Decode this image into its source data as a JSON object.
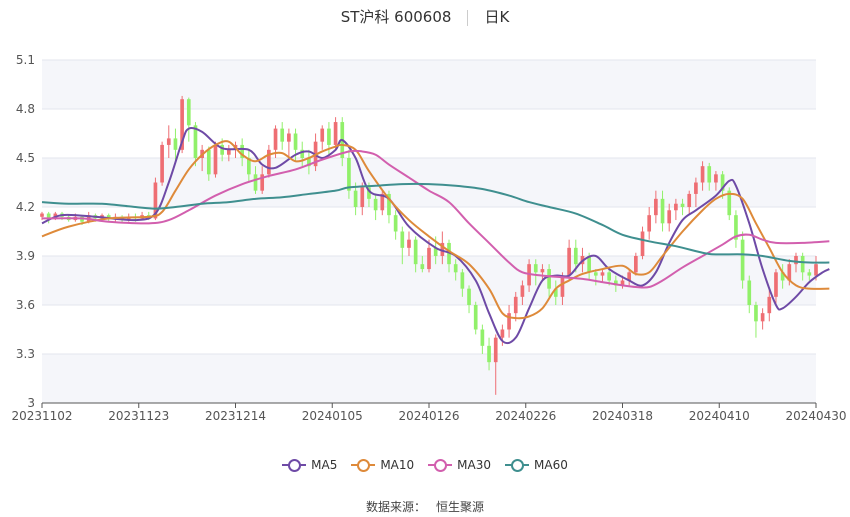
{
  "header": {
    "title": "ST沪科 600608",
    "period": "日K"
  },
  "source": {
    "label": "数据来源：",
    "name": "恒生聚源"
  },
  "colors": {
    "up": "#ee6e73",
    "down": "#91f06a",
    "grid_band": "#f5f6fa"
  },
  "chart_data": {
    "type": "candlestick",
    "ylim": [
      3,
      5.1
    ],
    "yticks": [
      "3",
      "3.3",
      "3.6",
      "3.9",
      "4.2",
      "4.5",
      "4.8",
      "5.1"
    ],
    "xticks": [
      "20231102",
      "20231123",
      "20231214",
      "20240105",
      "20240126",
      "20240226",
      "20240318",
      "20240410",
      "20240430"
    ],
    "candles": [
      [
        4.14,
        4.16,
        4.12,
        4.17
      ],
      [
        4.16,
        4.13,
        4.1,
        4.17
      ],
      [
        4.13,
        4.16,
        4.12,
        4.17
      ],
      [
        4.16,
        4.14,
        4.12,
        4.17
      ],
      [
        4.14,
        4.12,
        4.11,
        4.15
      ],
      [
        4.12,
        4.14,
        4.11,
        4.16
      ],
      [
        4.14,
        4.11,
        4.09,
        4.15
      ],
      [
        4.11,
        4.15,
        4.1,
        4.17
      ],
      [
        4.15,
        4.13,
        4.11,
        4.16
      ],
      [
        4.13,
        4.15,
        4.12,
        4.16
      ],
      [
        4.15,
        4.13,
        4.11,
        4.16
      ],
      [
        4.13,
        4.14,
        4.11,
        4.16
      ],
      [
        4.14,
        4.12,
        4.1,
        4.15
      ],
      [
        4.12,
        4.14,
        4.11,
        4.16
      ],
      [
        4.14,
        4.13,
        4.11,
        4.16
      ],
      [
        4.13,
        4.15,
        4.12,
        4.17
      ],
      [
        4.15,
        4.13,
        4.12,
        4.17
      ],
      [
        4.13,
        4.35,
        4.12,
        4.38
      ],
      [
        4.35,
        4.58,
        4.33,
        4.6
      ],
      [
        4.58,
        4.62,
        4.5,
        4.7
      ],
      [
        4.62,
        4.55,
        4.48,
        4.68
      ],
      [
        4.55,
        4.86,
        4.53,
        4.88
      ],
      [
        4.86,
        4.7,
        4.6,
        4.87
      ],
      [
        4.7,
        4.5,
        4.45,
        4.72
      ],
      [
        4.5,
        4.55,
        4.42,
        4.58
      ],
      [
        4.55,
        4.4,
        4.36,
        4.57
      ],
      [
        4.4,
        4.58,
        4.38,
        4.6
      ],
      [
        4.58,
        4.52,
        4.48,
        4.62
      ],
      [
        4.52,
        4.55,
        4.48,
        4.58
      ],
      [
        4.55,
        4.58,
        4.5,
        4.6
      ],
      [
        4.58,
        4.5,
        4.45,
        4.62
      ],
      [
        4.5,
        4.4,
        4.35,
        4.55
      ],
      [
        4.4,
        4.3,
        4.28,
        4.45
      ],
      [
        4.3,
        4.4,
        4.28,
        4.45
      ],
      [
        4.4,
        4.55,
        4.38,
        4.58
      ],
      [
        4.55,
        4.68,
        4.5,
        4.7
      ],
      [
        4.68,
        4.6,
        4.55,
        4.72
      ],
      [
        4.6,
        4.65,
        4.5,
        4.68
      ],
      [
        4.65,
        4.55,
        4.48,
        4.68
      ],
      [
        4.55,
        4.5,
        4.45,
        4.6
      ],
      [
        4.5,
        4.45,
        4.4,
        4.55
      ],
      [
        4.45,
        4.6,
        4.42,
        4.65
      ],
      [
        4.6,
        4.68,
        4.55,
        4.7
      ],
      [
        4.68,
        4.58,
        4.52,
        4.72
      ],
      [
        4.58,
        4.72,
        4.55,
        4.75
      ],
      [
        4.72,
        4.5,
        4.45,
        4.75
      ],
      [
        4.5,
        4.3,
        4.25,
        4.55
      ],
      [
        4.3,
        4.2,
        4.15,
        4.35
      ],
      [
        4.2,
        4.32,
        4.15,
        4.35
      ],
      [
        4.32,
        4.25,
        4.2,
        4.35
      ],
      [
        4.25,
        4.18,
        4.12,
        4.28
      ],
      [
        4.18,
        4.28,
        4.15,
        4.3
      ],
      [
        4.28,
        4.15,
        4.1,
        4.3
      ],
      [
        4.15,
        4.05,
        4.0,
        4.18
      ],
      [
        4.05,
        3.95,
        3.85,
        4.08
      ],
      [
        3.95,
        4.0,
        3.9,
        4.05
      ],
      [
        4.0,
        3.85,
        3.8,
        4.02
      ],
      [
        3.85,
        3.82,
        3.8,
        3.9
      ],
      [
        3.82,
        3.95,
        3.8,
        4.0
      ],
      [
        3.95,
        3.9,
        3.85,
        4.02
      ],
      [
        3.9,
        3.98,
        3.85,
        4.05
      ],
      [
        3.98,
        3.85,
        3.8,
        4.0
      ],
      [
        3.85,
        3.8,
        3.75,
        3.88
      ],
      [
        3.8,
        3.7,
        3.65,
        3.82
      ],
      [
        3.7,
        3.6,
        3.55,
        3.72
      ],
      [
        3.6,
        3.45,
        3.42,
        3.62
      ],
      [
        3.45,
        3.35,
        3.3,
        3.48
      ],
      [
        3.35,
        3.25,
        3.2,
        3.4
      ],
      [
        3.25,
        3.4,
        3.05,
        3.42
      ],
      [
        3.4,
        3.45,
        3.35,
        3.48
      ],
      [
        3.45,
        3.55,
        3.4,
        3.6
      ],
      [
        3.55,
        3.65,
        3.5,
        3.68
      ],
      [
        3.65,
        3.72,
        3.6,
        3.75
      ],
      [
        3.72,
        3.85,
        3.68,
        3.88
      ],
      [
        3.85,
        3.8,
        3.72,
        3.88
      ],
      [
        3.8,
        3.82,
        3.75,
        3.85
      ],
      [
        3.82,
        3.7,
        3.65,
        3.85
      ],
      [
        3.7,
        3.65,
        3.6,
        3.75
      ],
      [
        3.65,
        3.78,
        3.6,
        3.8
      ],
      [
        3.78,
        3.95,
        3.75,
        4.0
      ],
      [
        3.95,
        3.85,
        3.8,
        4.0
      ],
      [
        3.85,
        3.9,
        3.8,
        3.95
      ],
      [
        3.9,
        3.8,
        3.75,
        3.92
      ],
      [
        3.8,
        3.78,
        3.72,
        3.82
      ],
      [
        3.78,
        3.8,
        3.74,
        3.82
      ],
      [
        3.8,
        3.75,
        3.72,
        3.82
      ],
      [
        3.75,
        3.72,
        3.68,
        3.78
      ],
      [
        3.72,
        3.75,
        3.7,
        3.78
      ],
      [
        3.75,
        3.8,
        3.72,
        3.82
      ],
      [
        3.8,
        3.9,
        3.78,
        3.92
      ],
      [
        3.9,
        4.05,
        3.88,
        4.08
      ],
      [
        4.05,
        4.15,
        4.0,
        4.2
      ],
      [
        4.15,
        4.25,
        4.1,
        4.3
      ],
      [
        4.25,
        4.1,
        4.05,
        4.3
      ],
      [
        4.1,
        4.18,
        4.05,
        4.22
      ],
      [
        4.18,
        4.22,
        4.12,
        4.25
      ],
      [
        4.22,
        4.2,
        4.15,
        4.25
      ],
      [
        4.2,
        4.28,
        4.15,
        4.3
      ],
      [
        4.28,
        4.35,
        4.2,
        4.38
      ],
      [
        4.35,
        4.45,
        4.3,
        4.48
      ],
      [
        4.45,
        4.35,
        4.3,
        4.47
      ],
      [
        4.35,
        4.4,
        4.3,
        4.42
      ],
      [
        4.4,
        4.3,
        4.25,
        4.42
      ],
      [
        4.3,
        4.15,
        4.12,
        4.32
      ],
      [
        4.15,
        4.0,
        3.95,
        4.18
      ],
      [
        4.0,
        3.75,
        3.7,
        4.05
      ],
      [
        3.75,
        3.6,
        3.55,
        3.78
      ],
      [
        3.6,
        3.5,
        3.4,
        3.62
      ],
      [
        3.5,
        3.55,
        3.45,
        3.58
      ],
      [
        3.55,
        3.65,
        3.5,
        3.7
      ],
      [
        3.65,
        3.8,
        3.6,
        3.82
      ],
      [
        3.8,
        3.75,
        3.7,
        3.85
      ],
      [
        3.75,
        3.85,
        3.72,
        3.88
      ],
      [
        3.85,
        3.9,
        3.8,
        3.92
      ],
      [
        3.9,
        3.8,
        3.75,
        3.92
      ],
      [
        3.8,
        3.78,
        3.75,
        3.82
      ],
      [
        3.78,
        3.85,
        3.75,
        3.9
      ]
    ],
    "series": [
      {
        "name": "MA5",
        "color": "#6e4aa6",
        "points": [
          [
            0,
            4.1
          ],
          [
            3,
            4.15
          ],
          [
            8,
            4.14
          ],
          [
            14,
            4.12
          ],
          [
            17,
            4.16
          ],
          [
            19,
            4.35
          ],
          [
            21,
            4.6
          ],
          [
            22,
            4.68
          ],
          [
            24,
            4.66
          ],
          [
            27,
            4.56
          ],
          [
            31,
            4.55
          ],
          [
            33,
            4.46
          ],
          [
            35,
            4.44
          ],
          [
            38,
            4.52
          ],
          [
            40,
            4.54
          ],
          [
            42,
            4.5
          ],
          [
            44,
            4.55
          ],
          [
            45,
            4.61
          ],
          [
            47,
            4.5
          ],
          [
            49,
            4.3
          ],
          [
            52,
            4.25
          ],
          [
            55,
            4.08
          ],
          [
            59,
            3.95
          ],
          [
            62,
            3.9
          ],
          [
            65,
            3.75
          ],
          [
            67,
            3.55
          ],
          [
            69,
            3.38
          ],
          [
            71,
            3.4
          ],
          [
            73,
            3.58
          ],
          [
            75,
            3.75
          ],
          [
            77,
            3.78
          ],
          [
            79,
            3.78
          ],
          [
            81,
            3.87
          ],
          [
            83,
            3.9
          ],
          [
            85,
            3.82
          ],
          [
            88,
            3.75
          ],
          [
            90,
            3.72
          ],
          [
            92,
            3.8
          ],
          [
            94,
            3.98
          ],
          [
            96,
            4.12
          ],
          [
            98,
            4.18
          ],
          [
            101,
            4.27
          ],
          [
            103,
            4.36
          ],
          [
            104,
            4.33
          ],
          [
            106,
            4.1
          ],
          [
            108,
            3.82
          ],
          [
            110,
            3.6
          ],
          [
            111,
            3.58
          ],
          [
            113,
            3.65
          ],
          [
            115,
            3.74
          ],
          [
            117,
            3.8
          ],
          [
            118,
            3.82
          ]
        ]
      },
      {
        "name": "MA10",
        "color": "#de8a3a",
        "points": [
          [
            0,
            4.02
          ],
          [
            4,
            4.08
          ],
          [
            10,
            4.13
          ],
          [
            16,
            4.14
          ],
          [
            18,
            4.17
          ],
          [
            20,
            4.3
          ],
          [
            22,
            4.43
          ],
          [
            24,
            4.52
          ],
          [
            26,
            4.58
          ],
          [
            28,
            4.6
          ],
          [
            30,
            4.52
          ],
          [
            32,
            4.48
          ],
          [
            34,
            4.52
          ],
          [
            36,
            4.53
          ],
          [
            38,
            4.48
          ],
          [
            40,
            4.5
          ],
          [
            42,
            4.54
          ],
          [
            44,
            4.57
          ],
          [
            45,
            4.58
          ],
          [
            47,
            4.55
          ],
          [
            49,
            4.42
          ],
          [
            52,
            4.25
          ],
          [
            55,
            4.12
          ],
          [
            58,
            4.02
          ],
          [
            61,
            3.93
          ],
          [
            64,
            3.85
          ],
          [
            67,
            3.7
          ],
          [
            69,
            3.55
          ],
          [
            71,
            3.52
          ],
          [
            73,
            3.53
          ],
          [
            75,
            3.58
          ],
          [
            77,
            3.7
          ],
          [
            79,
            3.75
          ],
          [
            81,
            3.79
          ],
          [
            84,
            3.82
          ],
          [
            87,
            3.84
          ],
          [
            89,
            3.79
          ],
          [
            91,
            3.8
          ],
          [
            93,
            3.9
          ],
          [
            96,
            4.05
          ],
          [
            99,
            4.18
          ],
          [
            101,
            4.25
          ],
          [
            103,
            4.28
          ],
          [
            105,
            4.25
          ],
          [
            107,
            4.1
          ],
          [
            109,
            3.95
          ],
          [
            111,
            3.8
          ],
          [
            113,
            3.72
          ],
          [
            115,
            3.7
          ],
          [
            118,
            3.7
          ]
        ]
      },
      {
        "name": "MA30",
        "color": "#d25fae",
        "points": [
          [
            0,
            4.13
          ],
          [
            6,
            4.13
          ],
          [
            10,
            4.11
          ],
          [
            16,
            4.1
          ],
          [
            19,
            4.12
          ],
          [
            22,
            4.18
          ],
          [
            26,
            4.27
          ],
          [
            30,
            4.34
          ],
          [
            34,
            4.39
          ],
          [
            38,
            4.43
          ],
          [
            42,
            4.49
          ],
          [
            46,
            4.54
          ],
          [
            48,
            4.54
          ],
          [
            50,
            4.52
          ],
          [
            52,
            4.46
          ],
          [
            55,
            4.38
          ],
          [
            58,
            4.3
          ],
          [
            61,
            4.23
          ],
          [
            64,
            4.1
          ],
          [
            67,
            3.98
          ],
          [
            70,
            3.86
          ],
          [
            72,
            3.8
          ],
          [
            75,
            3.78
          ],
          [
            78,
            3.77
          ],
          [
            81,
            3.76
          ],
          [
            84,
            3.74
          ],
          [
            87,
            3.72
          ],
          [
            89,
            3.71
          ],
          [
            91,
            3.71
          ],
          [
            93,
            3.75
          ],
          [
            96,
            3.83
          ],
          [
            99,
            3.9
          ],
          [
            102,
            3.97
          ],
          [
            104,
            4.02
          ],
          [
            106,
            4.03
          ],
          [
            108,
            4.0
          ],
          [
            110,
            3.98
          ],
          [
            114,
            3.98
          ],
          [
            118,
            3.99
          ]
        ]
      },
      {
        "name": "MA60",
        "color": "#3f8f8f",
        "points": [
          [
            0,
            4.23
          ],
          [
            4,
            4.22
          ],
          [
            9,
            4.22
          ],
          [
            14,
            4.2
          ],
          [
            17,
            4.19
          ],
          [
            20,
            4.2
          ],
          [
            24,
            4.22
          ],
          [
            28,
            4.23
          ],
          [
            32,
            4.25
          ],
          [
            36,
            4.26
          ],
          [
            40,
            4.28
          ],
          [
            44,
            4.3
          ],
          [
            46,
            4.32
          ],
          [
            50,
            4.33
          ],
          [
            54,
            4.34
          ],
          [
            58,
            4.34
          ],
          [
            62,
            4.33
          ],
          [
            66,
            4.31
          ],
          [
            70,
            4.27
          ],
          [
            73,
            4.23
          ],
          [
            76,
            4.2
          ],
          [
            80,
            4.16
          ],
          [
            84,
            4.09
          ],
          [
            87,
            4.03
          ],
          [
            91,
            3.99
          ],
          [
            95,
            3.96
          ],
          [
            99,
            3.92
          ],
          [
            101,
            3.91
          ],
          [
            105,
            3.91
          ],
          [
            108,
            3.9
          ],
          [
            112,
            3.87
          ],
          [
            115,
            3.86
          ],
          [
            118,
            3.86
          ]
        ]
      }
    ]
  }
}
